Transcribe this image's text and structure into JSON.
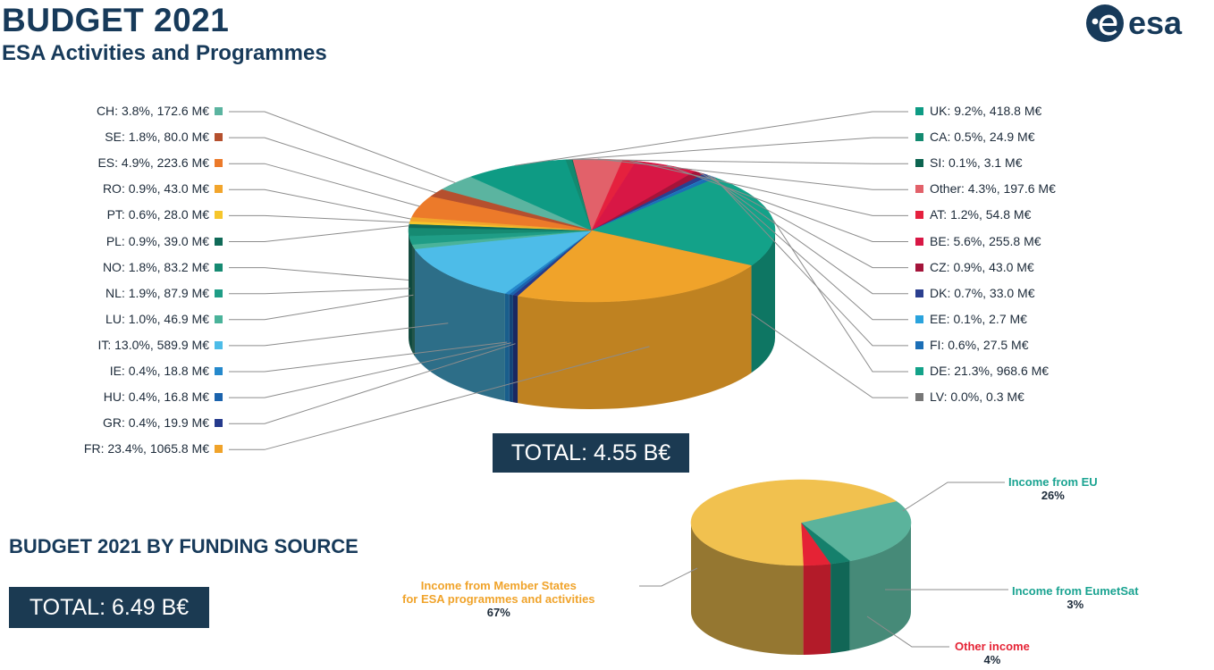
{
  "header": {
    "title": "BUDGET 2021",
    "subtitle": "ESA Activities and Programmes",
    "logo_text": "esa"
  },
  "totals": {
    "activities": "TOTAL: 4.55 B€",
    "funding_heading": "BUDGET 2021 BY FUNDING SOURCE",
    "funding": "TOTAL: 6.49 B€"
  },
  "chart_data": [
    {
      "type": "pie",
      "title": "ESA Activities and Programmes",
      "total_label": "TOTAL: 4.55 B€",
      "series": [
        {
          "name": "CH",
          "label": "CH: 3.8%, 172.6 M€",
          "value": 172.6,
          "percent": 3.8,
          "color": "#5bb4a0"
        },
        {
          "name": "UK",
          "label": "UK: 9.2%, 418.8 M€",
          "value": 418.8,
          "percent": 9.2,
          "color": "#0e9b84"
        },
        {
          "name": "CA",
          "label": "CA: 0.5%, 24.9 M€",
          "value": 24.9,
          "percent": 0.5,
          "color": "#138a70"
        },
        {
          "name": "SI",
          "label": "SI: 0.1%, 3.1 M€",
          "value": 3.1,
          "percent": 0.1,
          "color": "#0c6450"
        },
        {
          "name": "Other",
          "label": "Other: 4.3%, 197.6 M€",
          "value": 197.6,
          "percent": 4.3,
          "color": "#e2616a"
        },
        {
          "name": "AT",
          "label": "AT: 1.2%, 54.8 M€",
          "value": 54.8,
          "percent": 1.2,
          "color": "#e5213e"
        },
        {
          "name": "BE",
          "label": "BE: 5.6%, 255.8 M€",
          "value": 255.8,
          "percent": 5.6,
          "color": "#d81745"
        },
        {
          "name": "CZ",
          "label": "CZ: 0.9%, 43.0 M€",
          "value": 43.0,
          "percent": 0.9,
          "color": "#a4143a"
        },
        {
          "name": "DK",
          "label": "DK: 0.7%, 33.0 M€",
          "value": 33.0,
          "percent": 0.7,
          "color": "#2b3f8f"
        },
        {
          "name": "EE",
          "label": "EE: 0.1%, 2.7 M€",
          "value": 2.7,
          "percent": 0.1,
          "color": "#2aa3dd"
        },
        {
          "name": "FI",
          "label": "FI: 0.6%, 27.5 M€",
          "value": 27.5,
          "percent": 0.6,
          "color": "#1c6fb7"
        },
        {
          "name": "DE",
          "label": "DE: 21.3%, 968.6 M€",
          "value": 968.6,
          "percent": 21.3,
          "color": "#13a289"
        },
        {
          "name": "LV",
          "label": "LV: 0.0%, 0.3 M€",
          "value": 0.3,
          "percent": 0.0,
          "color": "#777777"
        },
        {
          "name": "FR",
          "label": "FR: 23.4%, 1065.8 M€",
          "value": 1065.8,
          "percent": 23.4,
          "color": "#f0a32a"
        },
        {
          "name": "GR",
          "label": "GR: 0.4%, 19.9 M€",
          "value": 19.9,
          "percent": 0.4,
          "color": "#253a8c"
        },
        {
          "name": "HU",
          "label": "HU: 0.4%, 16.8 M€",
          "value": 16.8,
          "percent": 0.4,
          "color": "#1b63ad"
        },
        {
          "name": "IE",
          "label": "IE: 0.4%, 18.8 M€",
          "value": 18.8,
          "percent": 0.4,
          "color": "#2589cc"
        },
        {
          "name": "IT",
          "label": "IT: 13.0%, 589.9 M€",
          "value": 589.9,
          "percent": 13.0,
          "color": "#4dbce8"
        },
        {
          "name": "LU",
          "label": "LU: 1.0%, 46.9 M€",
          "value": 46.9,
          "percent": 1.0,
          "color": "#4ab39a"
        },
        {
          "name": "NL",
          "label": "NL: 1.9%, 87.9 M€",
          "value": 87.9,
          "percent": 1.9,
          "color": "#1f9d86"
        },
        {
          "name": "NO",
          "label": "NO: 1.8%, 83.2 M€",
          "value": 83.2,
          "percent": 1.8,
          "color": "#168a72"
        },
        {
          "name": "PL",
          "label": "PL: 0.9%, 39.0 M€",
          "value": 39.0,
          "percent": 0.9,
          "color": "#106a58"
        },
        {
          "name": "PT",
          "label": "PT: 0.6%, 28.0 M€",
          "value": 28.0,
          "percent": 0.6,
          "color": "#f6c62b"
        },
        {
          "name": "RO",
          "label": "RO: 0.9%, 43.0 M€",
          "value": 43.0,
          "percent": 0.9,
          "color": "#f2a52c"
        },
        {
          "name": "ES",
          "label": "ES: 4.9%, 223.6 M€",
          "value": 223.6,
          "percent": 4.9,
          "color": "#ec7a2a"
        },
        {
          "name": "SE",
          "label": "SE: 1.8%, 80.0 M€",
          "value": 80.0,
          "percent": 1.8,
          "color": "#b5502e"
        }
      ],
      "legend_left": [
        "CH",
        "SE",
        "ES",
        "RO",
        "PT",
        "PL",
        "NO",
        "NL",
        "LU",
        "IT",
        "IE",
        "HU",
        "GR",
        "FR"
      ],
      "legend_right": [
        "UK",
        "CA",
        "SI",
        "Other",
        "AT",
        "BE",
        "CZ",
        "DK",
        "EE",
        "FI",
        "DE",
        "LV"
      ]
    },
    {
      "type": "pie",
      "title": "BUDGET 2021 BY FUNDING SOURCE",
      "total_label": "TOTAL: 6.49 B€",
      "series": [
        {
          "name": "Income from EU",
          "label": "Income from EU",
          "percent": 26,
          "pct_label": "26%",
          "color": "#5bb39c",
          "label_color": "#1aa391"
        },
        {
          "name": "Income from EumetSat",
          "label": "Income from EumetSat",
          "percent": 3,
          "pct_label": "3%",
          "color": "#15806c",
          "label_color": "#1aa391"
        },
        {
          "name": "Other income",
          "label": "Other income",
          "percent": 4,
          "pct_label": "4%",
          "color": "#e52335",
          "label_color": "#e52335"
        },
        {
          "name": "Income from Member States for ESA programmes and activities",
          "label_lines": [
            "Income from Member States",
            "for ESA programmes and activities"
          ],
          "percent": 67,
          "pct_label": "67%",
          "color": "#f1c14f",
          "label_color": "#f0a32a"
        }
      ]
    }
  ],
  "colors": {
    "navy": "#1b3a52",
    "title": "#173a5a",
    "line": "#8c8c8c"
  }
}
